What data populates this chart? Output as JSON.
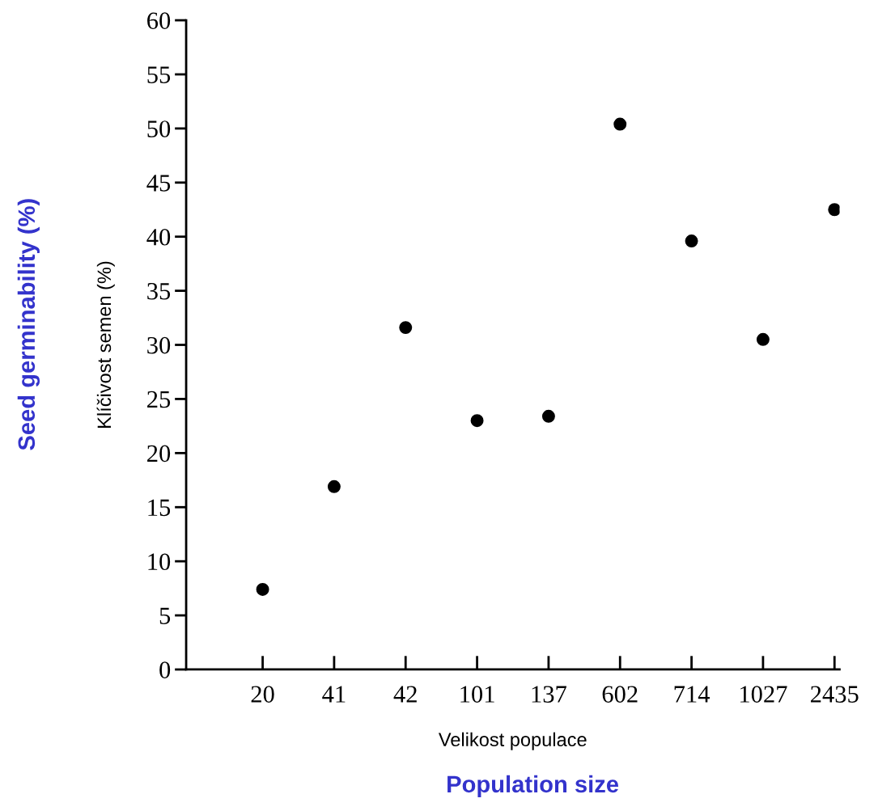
{
  "chart_data": {
    "type": "scatter",
    "xlabel": "Velikost populace",
    "ylabel": "Klíčivost semen (%)",
    "categories": [
      "20",
      "41",
      "42",
      "101",
      "137",
      "602",
      "714",
      "1027",
      "2435"
    ],
    "series": [
      {
        "color": "#000000",
        "values": [
          7.4,
          16.9,
          31.6,
          23.0,
          23.4,
          50.4,
          39.6,
          30.5,
          42.5
        ]
      }
    ],
    "ylim": [
      0,
      60
    ],
    "yticks": [
      0,
      5,
      10,
      15,
      20,
      25,
      30,
      35,
      40,
      45,
      50,
      55,
      60
    ],
    "marker": "circle",
    "grid": false,
    "legend": false,
    "annotations": [
      "Seed germinability (%)",
      "Population size"
    ]
  }
}
